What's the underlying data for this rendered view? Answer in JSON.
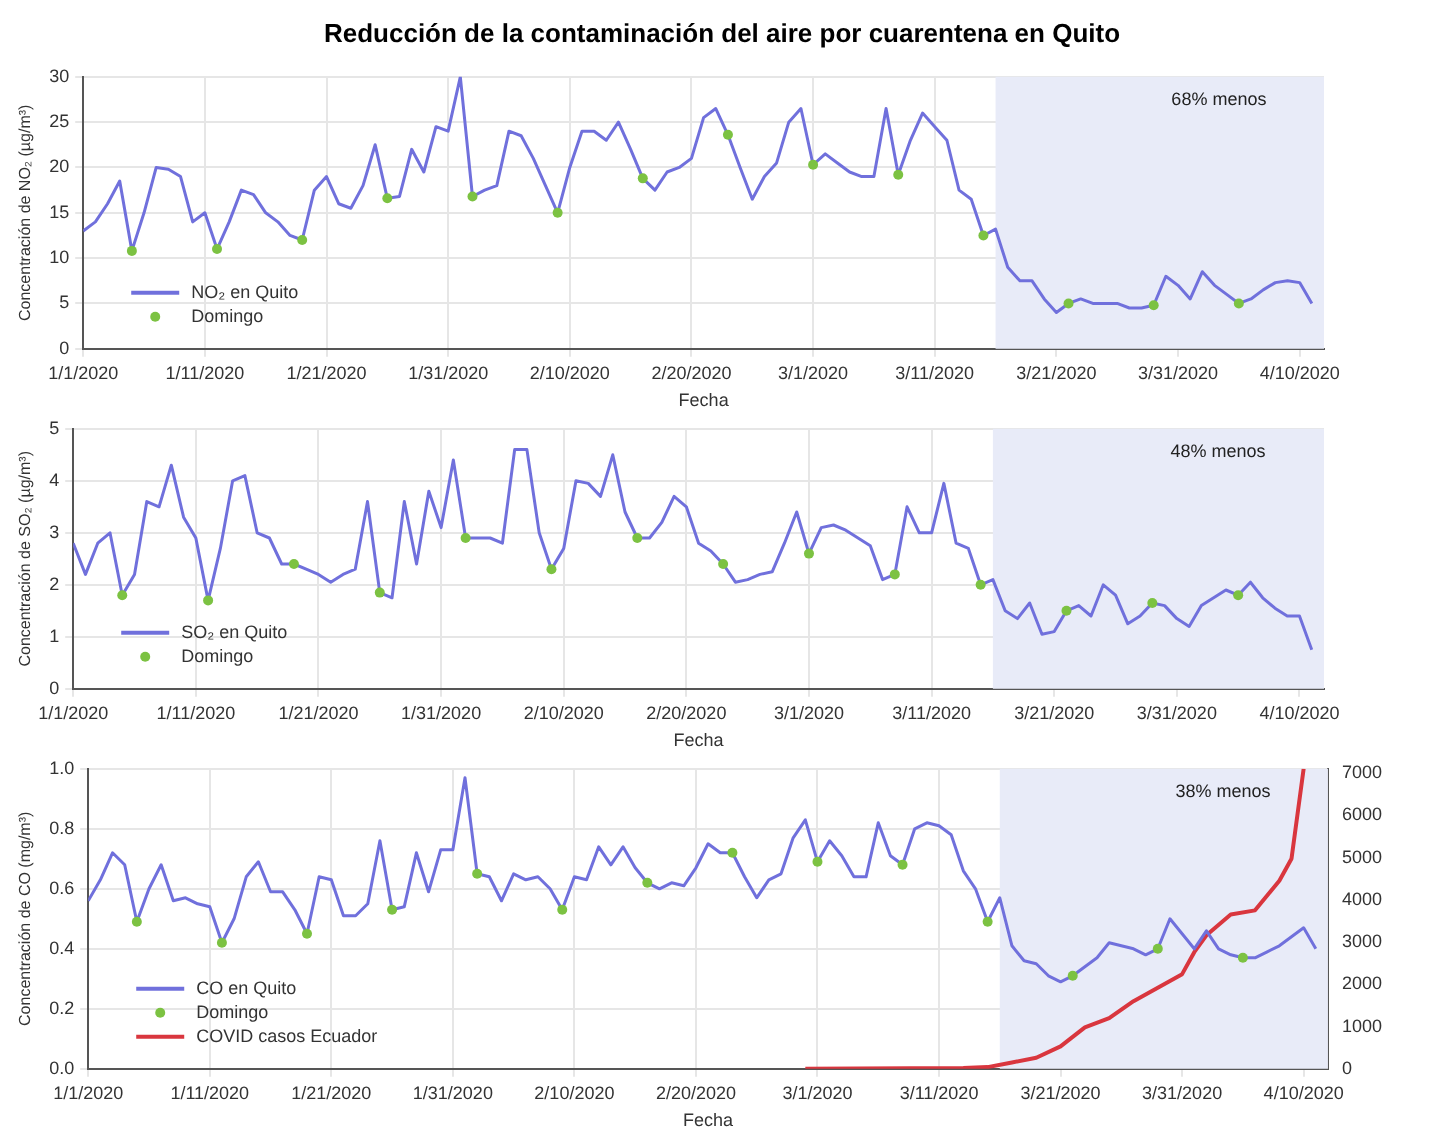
{
  "chart_data": [
    {
      "type": "line",
      "title": "Reducción de la contaminación del aire por cuarentena en Quito",
      "xlabel": "Fecha",
      "ylabel": "Concentración de NO₂ (µg/m³)",
      "x": [
        "2020-01-01",
        "2020-01-02",
        "2020-01-03",
        "2020-01-04",
        "2020-01-05",
        "2020-01-06",
        "2020-01-07",
        "2020-01-08",
        "2020-01-09",
        "2020-01-10",
        "2020-01-11",
        "2020-01-12",
        "2020-01-13",
        "2020-01-14",
        "2020-01-15",
        "2020-01-16",
        "2020-01-17",
        "2020-01-18",
        "2020-01-19",
        "2020-01-20",
        "2020-01-21",
        "2020-01-22",
        "2020-01-23",
        "2020-01-24",
        "2020-01-25",
        "2020-01-26",
        "2020-01-27",
        "2020-01-28",
        "2020-01-29",
        "2020-01-30",
        "2020-01-31",
        "2020-02-01",
        "2020-02-02",
        "2020-02-03",
        "2020-02-04",
        "2020-02-05",
        "2020-02-06",
        "2020-02-07",
        "2020-02-08",
        "2020-02-09",
        "2020-02-10",
        "2020-02-11",
        "2020-02-12",
        "2020-02-13",
        "2020-02-14",
        "2020-02-15",
        "2020-02-16",
        "2020-02-17",
        "2020-02-18",
        "2020-02-19",
        "2020-02-20",
        "2020-02-21",
        "2020-02-22",
        "2020-02-23",
        "2020-02-24",
        "2020-02-25",
        "2020-02-26",
        "2020-02-27",
        "2020-02-28",
        "2020-02-29",
        "2020-03-01",
        "2020-03-02",
        "2020-03-03",
        "2020-03-04",
        "2020-03-05",
        "2020-03-06",
        "2020-03-07",
        "2020-03-08",
        "2020-03-09",
        "2020-03-10",
        "2020-03-11",
        "2020-03-12",
        "2020-03-13",
        "2020-03-14",
        "2020-03-15",
        "2020-03-16",
        "2020-03-17",
        "2020-03-18",
        "2020-03-19",
        "2020-03-20",
        "2020-03-21",
        "2020-03-22",
        "2020-03-23",
        "2020-03-24",
        "2020-03-25",
        "2020-03-26",
        "2020-03-27",
        "2020-03-28",
        "2020-03-29",
        "2020-03-30",
        "2020-03-31",
        "2020-04-01",
        "2020-04-02",
        "2020-04-03",
        "2020-04-04",
        "2020-04-05",
        "2020-04-06",
        "2020-04-07",
        "2020-04-08",
        "2020-04-09",
        "2020-04-10",
        "2020-04-11"
      ],
      "series": [
        {
          "name": "NO₂ en Quito",
          "color": "#7070dc",
          "values": [
            13,
            14,
            16,
            18.5,
            10.8,
            15,
            20,
            19.8,
            19,
            14,
            15,
            11,
            14,
            17.5,
            17,
            15,
            14,
            12.5,
            12,
            17.5,
            19,
            16,
            15.5,
            18,
            22.5,
            16.6,
            16.8,
            22,
            19.5,
            24.5,
            24,
            30,
            16.8,
            17.5,
            18,
            24,
            23.5,
            21,
            18,
            15,
            20,
            24,
            24,
            23,
            25,
            22,
            18.8,
            17.5,
            19.5,
            20,
            21,
            25.5,
            26.5,
            23.6,
            20,
            16.5,
            19,
            20.5,
            25,
            26.5,
            20.3,
            21.5,
            20.5,
            19.5,
            19,
            19,
            26.5,
            19.2,
            23,
            26,
            24.5,
            23,
            17.5,
            16.5,
            12.5,
            13.2,
            9,
            7.5,
            7.5,
            5.5,
            4,
            5,
            5.5,
            5,
            5,
            5,
            4.5,
            4.5,
            4.8,
            8,
            7,
            5.5,
            8.5,
            7,
            6,
            5,
            5.5,
            6.5,
            7.3,
            7.5,
            7.3,
            5
          ]
        },
        {
          "name": "Domingo",
          "type": "scatter",
          "marker": "circle",
          "color": "#7cc242",
          "x": [
            "2020-01-05",
            "2020-01-12",
            "2020-01-19",
            "2020-01-26",
            "2020-02-02",
            "2020-02-09",
            "2020-02-16",
            "2020-02-23",
            "2020-03-01",
            "2020-03-08",
            "2020-03-15",
            "2020-03-22",
            "2020-03-29",
            "2020-04-05"
          ],
          "values": [
            10.8,
            11,
            12,
            16.6,
            16.8,
            15,
            18.8,
            23.6,
            20.3,
            19.2,
            12.5,
            5,
            4.8,
            5
          ]
        }
      ],
      "xlim": [
        "2020-01-01",
        "2020-04-12"
      ],
      "xticks": [
        {
          "value": "2020-01-01",
          "label": "1/1/2020"
        },
        {
          "value": "2020-01-11",
          "label": "1/11/2020"
        },
        {
          "value": "2020-01-21",
          "label": "1/21/2020"
        },
        {
          "value": "2020-01-31",
          "label": "1/31/2020"
        },
        {
          "value": "2020-02-10",
          "label": "2/10/2020"
        },
        {
          "value": "2020-02-20",
          "label": "2/20/2020"
        },
        {
          "value": "2020-03-01",
          "label": "3/1/2020"
        },
        {
          "value": "2020-03-11",
          "label": "3/11/2020"
        },
        {
          "value": "2020-03-21",
          "label": "3/21/2020"
        },
        {
          "value": "2020-03-31",
          "label": "3/31/2020"
        },
        {
          "value": "2020-04-10",
          "label": "4/10/2020"
        }
      ],
      "ylim": [
        0,
        30
      ],
      "yticks": [
        0,
        5,
        10,
        15,
        20,
        25,
        30
      ],
      "grid": true,
      "legend": "bottom left",
      "bands": [
        {
          "axis": "x",
          "from": "2020-03-16",
          "to": "2020-04-12",
          "color": "#e8ebf8"
        }
      ],
      "annotations": [
        "68% menos"
      ]
    },
    {
      "type": "line",
      "xlabel": "Fecha",
      "ylabel": "Concentración de SO₂ (µg/m³)",
      "x": [
        "2020-01-01",
        "2020-01-02",
        "2020-01-03",
        "2020-01-04",
        "2020-01-05",
        "2020-01-06",
        "2020-01-07",
        "2020-01-08",
        "2020-01-09",
        "2020-01-10",
        "2020-01-11",
        "2020-01-12",
        "2020-01-13",
        "2020-01-14",
        "2020-01-15",
        "2020-01-16",
        "2020-01-17",
        "2020-01-18",
        "2020-01-19",
        "2020-01-20",
        "2020-01-21",
        "2020-01-22",
        "2020-01-23",
        "2020-01-24",
        "2020-01-25",
        "2020-01-26",
        "2020-01-27",
        "2020-01-28",
        "2020-01-29",
        "2020-01-30",
        "2020-01-31",
        "2020-02-01",
        "2020-02-02",
        "2020-02-03",
        "2020-02-04",
        "2020-02-05",
        "2020-02-06",
        "2020-02-07",
        "2020-02-08",
        "2020-02-09",
        "2020-02-10",
        "2020-02-11",
        "2020-02-12",
        "2020-02-13",
        "2020-02-14",
        "2020-02-15",
        "2020-02-16",
        "2020-02-17",
        "2020-02-18",
        "2020-02-19",
        "2020-02-20",
        "2020-02-21",
        "2020-02-22",
        "2020-02-23",
        "2020-02-24",
        "2020-02-25",
        "2020-02-26",
        "2020-02-27",
        "2020-02-28",
        "2020-02-29",
        "2020-03-01",
        "2020-03-02",
        "2020-03-03",
        "2020-03-04",
        "2020-03-05",
        "2020-03-06",
        "2020-03-07",
        "2020-03-08",
        "2020-03-09",
        "2020-03-10",
        "2020-03-11",
        "2020-03-12",
        "2020-03-13",
        "2020-03-14",
        "2020-03-15",
        "2020-03-16",
        "2020-03-17",
        "2020-03-18",
        "2020-03-19",
        "2020-03-20",
        "2020-03-21",
        "2020-03-22",
        "2020-03-23",
        "2020-03-24",
        "2020-03-25",
        "2020-03-26",
        "2020-03-27",
        "2020-03-28",
        "2020-03-29",
        "2020-03-30",
        "2020-03-31",
        "2020-04-01",
        "2020-04-02",
        "2020-04-03",
        "2020-04-04",
        "2020-04-05",
        "2020-04-06",
        "2020-04-07",
        "2020-04-08",
        "2020-04-09",
        "2020-04-10",
        "2020-04-11"
      ],
      "series": [
        {
          "name": "SO₂ en Quito",
          "color": "#7070dc",
          "values": [
            2.8,
            2.2,
            2.8,
            3.0,
            1.8,
            2.2,
            3.6,
            3.5,
            4.3,
            3.3,
            2.9,
            1.7,
            2.7,
            4.0,
            4.1,
            3.0,
            2.9,
            2.4,
            2.4,
            2.3,
            2.2,
            2.05,
            2.2,
            2.3,
            3.6,
            1.85,
            1.75,
            3.6,
            2.4,
            3.8,
            3.1,
            4.4,
            2.9,
            2.9,
            2.9,
            2.8,
            4.6,
            4.6,
            3.0,
            2.3,
            2.7,
            4.0,
            3.95,
            3.7,
            4.5,
            3.4,
            2.9,
            2.9,
            3.2,
            3.7,
            3.5,
            2.8,
            2.65,
            2.4,
            2.05,
            2.1,
            2.2,
            2.25,
            2.8,
            3.4,
            2.6,
            3.1,
            3.15,
            3.05,
            2.9,
            2.75,
            2.1,
            2.2,
            3.5,
            3.0,
            3.0,
            3.95,
            2.8,
            2.7,
            2.0,
            2.1,
            1.5,
            1.35,
            1.65,
            1.05,
            1.1,
            1.5,
            1.6,
            1.4,
            2.0,
            1.8,
            1.25,
            1.4,
            1.65,
            1.6,
            1.35,
            1.2,
            1.6,
            1.75,
            1.9,
            1.8,
            2.05,
            1.75,
            1.55,
            1.4,
            1.4,
            0.75
          ]
        },
        {
          "name": "Domingo",
          "type": "scatter",
          "marker": "circle",
          "color": "#7cc242",
          "x": [
            "2020-01-05",
            "2020-01-12",
            "2020-01-19",
            "2020-01-26",
            "2020-02-02",
            "2020-02-09",
            "2020-02-16",
            "2020-02-23",
            "2020-03-01",
            "2020-03-08",
            "2020-03-15",
            "2020-03-22",
            "2020-03-29",
            "2020-04-05"
          ],
          "values": [
            1.8,
            1.7,
            2.4,
            1.85,
            2.9,
            2.3,
            2.9,
            2.4,
            2.6,
            2.2,
            2.0,
            1.5,
            1.65,
            1.8
          ]
        }
      ],
      "xlim": [
        "2020-01-01",
        "2020-04-12"
      ],
      "xticks": [
        {
          "value": "2020-01-01",
          "label": "1/1/2020"
        },
        {
          "value": "2020-01-11",
          "label": "1/11/2020"
        },
        {
          "value": "2020-01-21",
          "label": "1/21/2020"
        },
        {
          "value": "2020-01-31",
          "label": "1/31/2020"
        },
        {
          "value": "2020-02-10",
          "label": "2/10/2020"
        },
        {
          "value": "2020-02-20",
          "label": "2/20/2020"
        },
        {
          "value": "2020-03-01",
          "label": "3/1/2020"
        },
        {
          "value": "2020-03-11",
          "label": "3/11/2020"
        },
        {
          "value": "2020-03-21",
          "label": "3/21/2020"
        },
        {
          "value": "2020-03-31",
          "label": "3/31/2020"
        },
        {
          "value": "2020-04-10",
          "label": "4/10/2020"
        }
      ],
      "ylim": [
        0,
        5
      ],
      "yticks": [
        0,
        1,
        2,
        3,
        4,
        5
      ],
      "grid": true,
      "legend": "bottom left",
      "bands": [
        {
          "axis": "x",
          "from": "2020-03-16",
          "to": "2020-04-12",
          "color": "#e8ebf8"
        }
      ],
      "annotations": [
        "48% menos"
      ]
    },
    {
      "type": "line",
      "xlabel": "Fecha",
      "ylabel": "Concentración de CO (mg/m³)",
      "x": [
        "2020-01-01",
        "2020-01-02",
        "2020-01-03",
        "2020-01-04",
        "2020-01-05",
        "2020-01-06",
        "2020-01-07",
        "2020-01-08",
        "2020-01-09",
        "2020-01-10",
        "2020-01-11",
        "2020-01-12",
        "2020-01-13",
        "2020-01-14",
        "2020-01-15",
        "2020-01-16",
        "2020-01-17",
        "2020-01-18",
        "2020-01-19",
        "2020-01-20",
        "2020-01-21",
        "2020-01-22",
        "2020-01-23",
        "2020-01-24",
        "2020-01-25",
        "2020-01-26",
        "2020-01-27",
        "2020-01-28",
        "2020-01-29",
        "2020-01-30",
        "2020-01-31",
        "2020-02-01",
        "2020-02-02",
        "2020-02-03",
        "2020-02-04",
        "2020-02-05",
        "2020-02-06",
        "2020-02-07",
        "2020-02-08",
        "2020-02-09",
        "2020-02-10",
        "2020-02-11",
        "2020-02-12",
        "2020-02-13",
        "2020-02-14",
        "2020-02-15",
        "2020-02-16",
        "2020-02-17",
        "2020-02-18",
        "2020-02-19",
        "2020-02-20",
        "2020-02-21",
        "2020-02-22",
        "2020-02-23",
        "2020-02-24",
        "2020-02-25",
        "2020-02-26",
        "2020-02-27",
        "2020-02-28",
        "2020-02-29",
        "2020-03-01",
        "2020-03-02",
        "2020-03-03",
        "2020-03-04",
        "2020-03-05",
        "2020-03-06",
        "2020-03-07",
        "2020-03-08",
        "2020-03-09",
        "2020-03-10",
        "2020-03-11",
        "2020-03-12",
        "2020-03-13",
        "2020-03-14",
        "2020-03-15",
        "2020-03-16",
        "2020-03-17",
        "2020-03-18",
        "2020-03-19",
        "2020-03-20",
        "2020-03-21",
        "2020-03-22",
        "2020-03-23",
        "2020-03-24",
        "2020-03-25",
        "2020-03-26",
        "2020-03-27",
        "2020-03-28",
        "2020-03-29",
        "2020-03-30",
        "2020-03-31",
        "2020-04-01",
        "2020-04-02",
        "2020-04-03",
        "2020-04-04",
        "2020-04-05",
        "2020-04-06",
        "2020-04-07",
        "2020-04-08",
        "2020-04-09",
        "2020-04-10",
        "2020-04-11"
      ],
      "series": [
        {
          "name": "CO en Quito",
          "color": "#7070dc",
          "values": [
            0.56,
            0.63,
            0.72,
            0.68,
            0.49,
            0.6,
            0.68,
            0.56,
            0.57,
            0.55,
            0.54,
            0.42,
            0.5,
            0.64,
            0.69,
            0.59,
            0.59,
            0.53,
            0.45,
            0.64,
            0.63,
            0.51,
            0.51,
            0.55,
            0.76,
            0.53,
            0.54,
            0.72,
            0.59,
            0.73,
            0.73,
            0.97,
            0.65,
            0.64,
            0.56,
            0.65,
            0.63,
            0.64,
            0.6,
            0.53,
            0.64,
            0.63,
            0.74,
            0.68,
            0.74,
            0.67,
            0.62,
            0.6,
            0.62,
            0.61,
            0.67,
            0.75,
            0.72,
            0.72,
            0.64,
            0.57,
            0.63,
            0.65,
            0.77,
            0.83,
            0.69,
            0.76,
            0.71,
            0.64,
            0.64,
            0.82,
            0.71,
            0.68,
            0.8,
            0.82,
            0.81,
            0.78,
            0.66,
            0.6,
            0.49,
            0.57,
            0.41,
            0.36,
            0.35,
            0.31,
            0.29,
            0.31,
            0.34,
            0.37,
            0.42,
            0.41,
            0.4,
            0.38,
            0.4,
            0.5,
            0.45,
            0.4,
            0.46,
            0.4,
            0.38,
            0.37,
            0.37,
            0.39,
            0.41,
            0.44,
            0.47,
            0.4
          ]
        },
        {
          "name": "Domingo",
          "type": "scatter",
          "marker": "circle",
          "color": "#7cc242",
          "x": [
            "2020-01-05",
            "2020-01-12",
            "2020-01-19",
            "2020-01-26",
            "2020-02-02",
            "2020-02-09",
            "2020-02-16",
            "2020-02-23",
            "2020-03-01",
            "2020-03-08",
            "2020-03-15",
            "2020-03-22",
            "2020-03-29",
            "2020-04-05"
          ],
          "values": [
            0.49,
            0.42,
            0.45,
            0.53,
            0.65,
            0.53,
            0.62,
            0.72,
            0.69,
            0.68,
            0.49,
            0.31,
            0.4,
            0.37
          ]
        },
        {
          "name": "COVID casos Ecuador",
          "axis": "y2",
          "color": "#d9363e",
          "x": [
            "2020-02-29",
            "2020-03-13",
            "2020-03-15",
            "2020-03-17",
            "2020-03-19",
            "2020-03-21",
            "2020-03-23",
            "2020-03-25",
            "2020-03-27",
            "2020-03-29",
            "2020-03-31",
            "2020-04-01",
            "2020-04-02",
            "2020-04-04",
            "2020-04-06",
            "2020-04-08",
            "2020-04-09",
            "2020-04-10"
          ],
          "values": [
            0,
            20,
            40,
            150,
            260,
            530,
            980,
            1200,
            1600,
            1920,
            2240,
            2760,
            3160,
            3650,
            3750,
            4450,
            4970,
            7100
          ]
        }
      ],
      "xlim": [
        "2020-01-01",
        "2020-04-12"
      ],
      "xticks": [
        {
          "value": "2020-01-01",
          "label": "1/1/2020"
        },
        {
          "value": "2020-01-11",
          "label": "1/11/2020"
        },
        {
          "value": "2020-01-21",
          "label": "1/21/2020"
        },
        {
          "value": "2020-01-31",
          "label": "1/31/2020"
        },
        {
          "value": "2020-02-10",
          "label": "2/10/2020"
        },
        {
          "value": "2020-02-20",
          "label": "2/20/2020"
        },
        {
          "value": "2020-03-01",
          "label": "3/1/2020"
        },
        {
          "value": "2020-03-11",
          "label": "3/11/2020"
        },
        {
          "value": "2020-03-21",
          "label": "3/21/2020"
        },
        {
          "value": "2020-03-31",
          "label": "3/31/2020"
        },
        {
          "value": "2020-04-10",
          "label": "4/10/2020"
        }
      ],
      "ylim": [
        0,
        1.0
      ],
      "yticks": [
        {
          "value": 0,
          "label": "0.0"
        },
        {
          "value": 0.2,
          "label": "0.2"
        },
        {
          "value": 0.4,
          "label": "0.4"
        },
        {
          "value": 0.6,
          "label": "0.6"
        },
        {
          "value": 0.8,
          "label": "0.8"
        },
        {
          "value": 1.0,
          "label": "1.0"
        }
      ],
      "y2lim": [
        0,
        7100
      ],
      "y2ticks": [
        0,
        1000,
        2000,
        3000,
        4000,
        5000,
        6000,
        7000
      ],
      "grid": true,
      "legend": "bottom left",
      "bands": [
        {
          "axis": "x",
          "from": "2020-03-16",
          "to": "2020-04-12",
          "color": "#e8ebf8"
        }
      ],
      "annotations": [
        "38% menos"
      ]
    }
  ]
}
